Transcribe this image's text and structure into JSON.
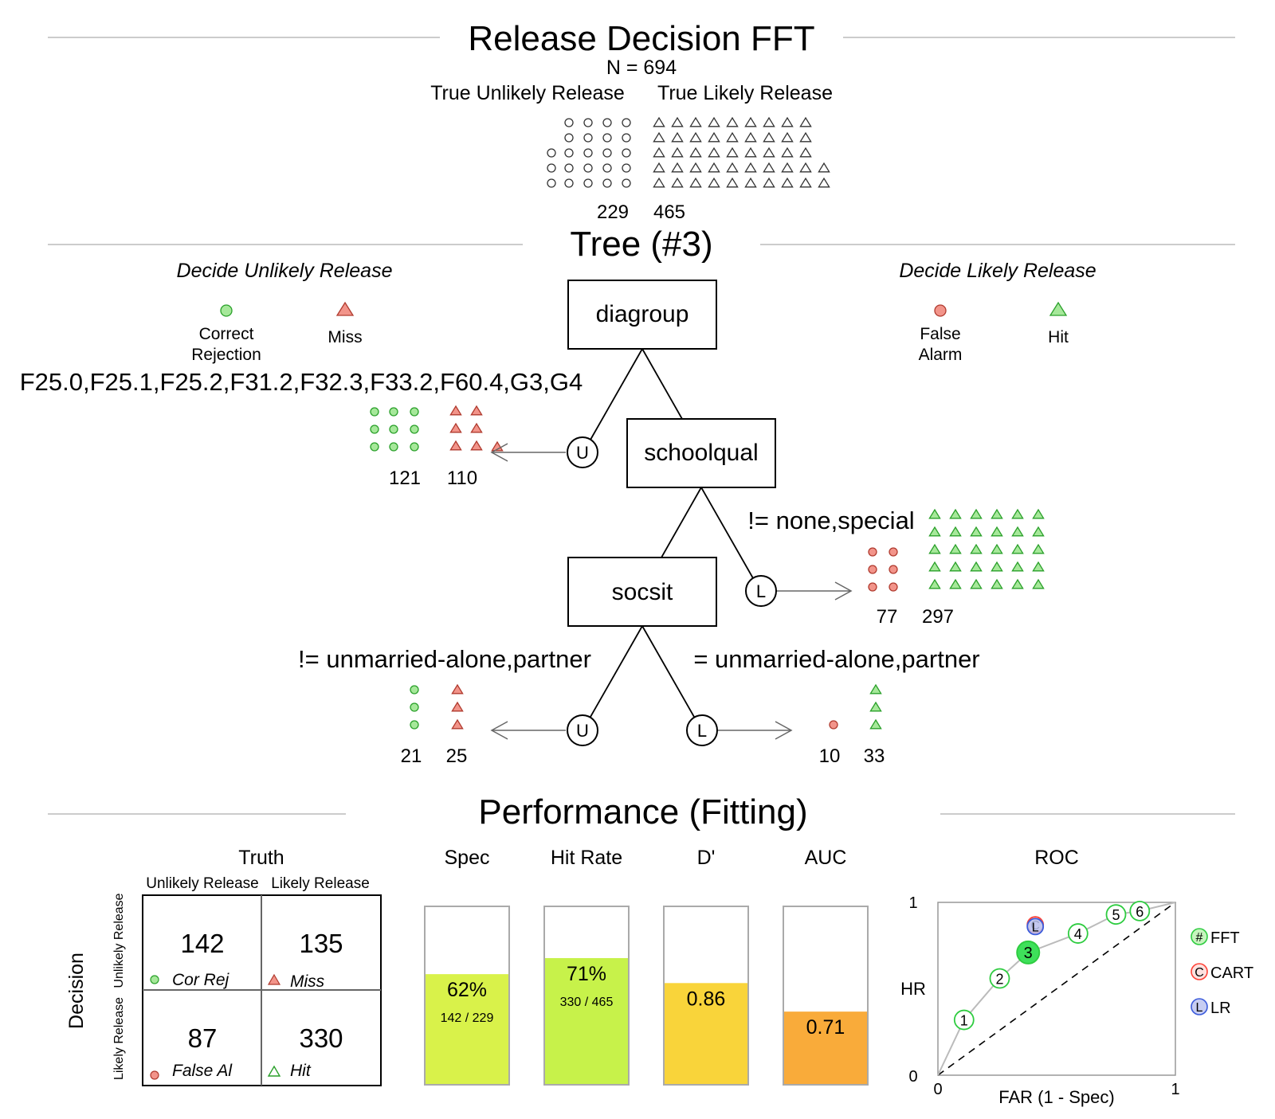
{
  "header": {
    "title": "Release Decision FFT",
    "n_label": "N = 694",
    "class_left": "True Unlikely Release",
    "class_right": "True Likely Release",
    "count_left": "229",
    "count_right": "465"
  },
  "tree": {
    "title": "Tree (#3)",
    "decide_left": "Decide Unlikely Release",
    "decide_right": "Decide Likely Release",
    "legend": {
      "cor_rej_1": "Correct",
      "cor_rej_2": "Rejection",
      "miss": "Miss",
      "fa_1": "False",
      "fa_2": "Alarm",
      "hit": "Hit"
    },
    "nodes": {
      "n1": "diagroup",
      "n2": "schoolqual",
      "n3": "socsit"
    },
    "conditions": {
      "c1": "F25.0,F25.1,F25.2,F31.2,F32.3,F33.2,F60.4,G3,G4",
      "c2": "!= none,special",
      "c3_left": "!= unmarried-alone,partner",
      "c3_right": "= unmarried-alone,partner"
    },
    "exits": {
      "u": "U",
      "l": "L"
    },
    "exit_counts": {
      "e1a": "121",
      "e1b": "110",
      "e2a": "77",
      "e2b": "297",
      "e3a": "21",
      "e3b": "25",
      "e4a": "10",
      "e4b": "33"
    }
  },
  "performance": {
    "title": "Performance (Fitting)",
    "truth_label": "Truth",
    "truth_unlikely": "Unlikely Release",
    "truth_likely": "Likely Release",
    "decision_label": "Decision",
    "dec_unlikely": "Unlikely Release",
    "dec_likely": "Likely Release",
    "cells": {
      "cr": {
        "value": "142",
        "label": "Cor Rej"
      },
      "miss": {
        "value": "135",
        "label": "Miss"
      },
      "fa": {
        "value": "87",
        "label": "False Al"
      },
      "hit": {
        "value": "330",
        "label": "Hit"
      }
    },
    "bars": [
      {
        "label": "Spec",
        "value_text": "62%",
        "sub_text": "142 / 229",
        "level": 0.62,
        "color": "#d9f24a"
      },
      {
        "label": "Hit Rate",
        "value_text": "71%",
        "sub_text": "330 / 465",
        "level": 0.71,
        "color": "#c7f24a"
      },
      {
        "label": "D'",
        "value_text": "0.86",
        "sub_text": "",
        "level": 0.57,
        "color": "#f9d43a"
      },
      {
        "label": "AUC",
        "value_text": "0.71",
        "sub_text": "",
        "level": 0.41,
        "color": "#f9ab3a"
      }
    ],
    "roc": {
      "title": "ROC",
      "ylabel": "HR",
      "xlabel": "FAR (1 - Spec)",
      "y_top": "1",
      "y_bottom": "0",
      "x_left": "0",
      "x_right": "1",
      "legend_fft": "FFT",
      "legend_cart": "CART",
      "legend_lr": "LR",
      "legend_fft_sym": "#",
      "legend_cart_sym": "C",
      "legend_lr_sym": "L"
    }
  },
  "chart_data": {
    "type": "scatter",
    "title": "ROC",
    "xlabel": "FAR (1 - Spec)",
    "ylabel": "HR",
    "xlim": [
      0,
      1
    ],
    "ylim": [
      0,
      1
    ],
    "series": [
      {
        "name": "FFT",
        "labels": [
          "1",
          "2",
          "3",
          "4",
          "5",
          "6"
        ],
        "x": [
          0.11,
          0.26,
          0.38,
          0.59,
          0.75,
          0.85
        ],
        "y": [
          0.32,
          0.56,
          0.71,
          0.82,
          0.93,
          0.95
        ]
      },
      {
        "name": "CART",
        "labels": [
          "C"
        ],
        "x": [
          0.41
        ],
        "y": [
          0.87
        ]
      },
      {
        "name": "LR",
        "labels": [
          "L"
        ],
        "x": [
          0.41
        ],
        "y": [
          0.86
        ]
      }
    ],
    "colors": {
      "fft": "#2ecc40",
      "cart": "#ff4136",
      "lr": "#3b5bdb",
      "hr_icon": "#8fe07d",
      "miss_icon": "#f2948a"
    }
  }
}
